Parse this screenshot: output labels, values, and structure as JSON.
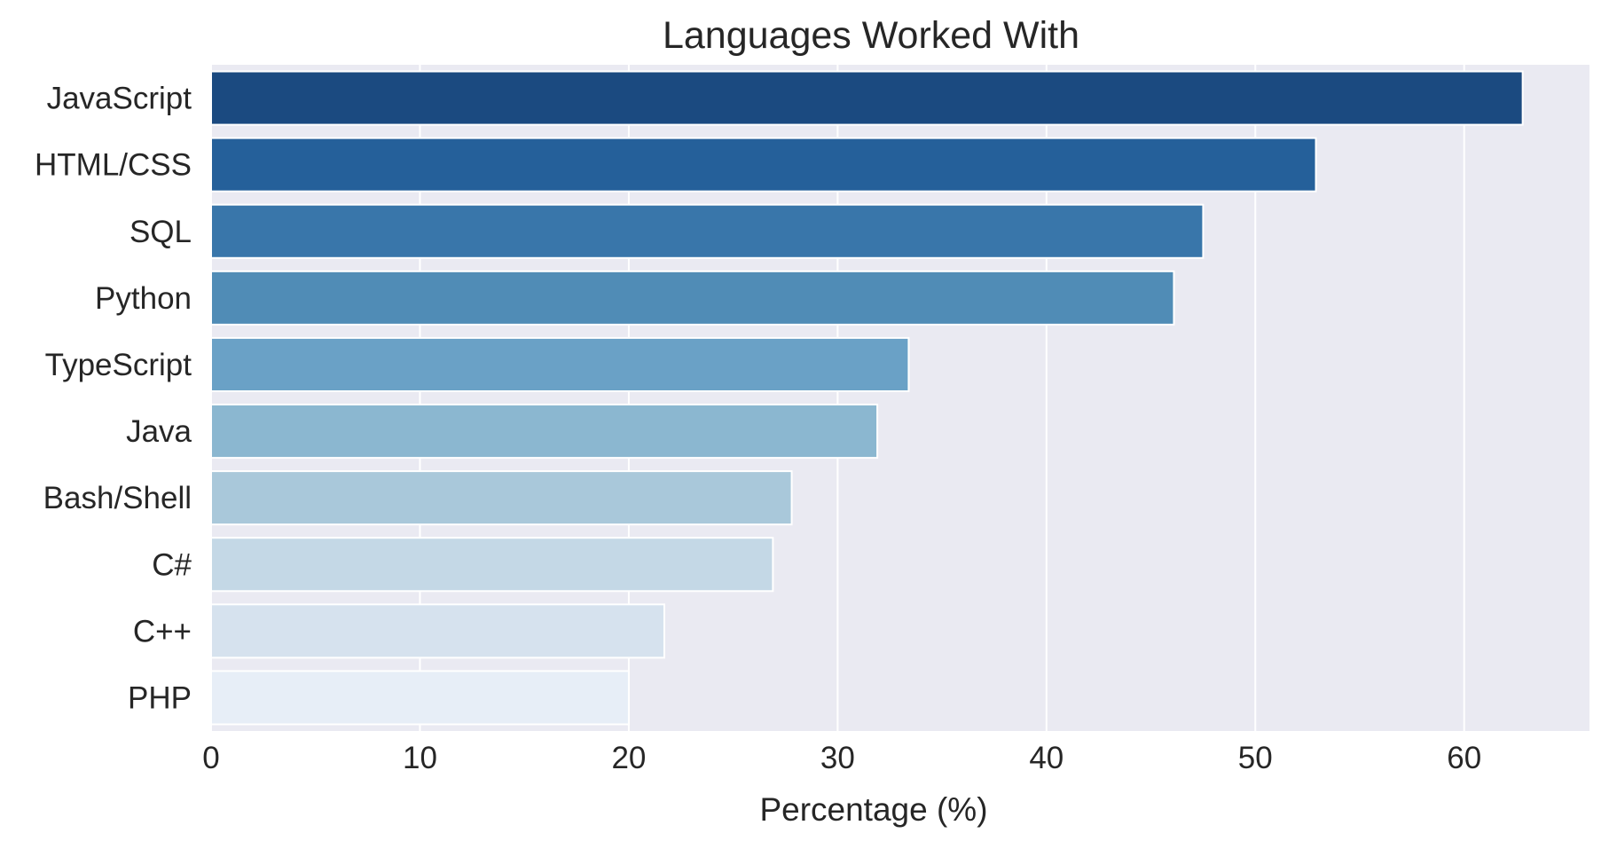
{
  "chart_data": {
    "type": "bar",
    "orientation": "horizontal",
    "title": "Languages Worked With",
    "xlabel": "Percentage (%)",
    "ylabel": "",
    "xlim": [
      0,
      66
    ],
    "x_ticks": [
      0,
      10,
      20,
      30,
      40,
      50,
      60
    ],
    "grid": true,
    "legend": "none",
    "background_color": "#eaeaf2",
    "grid_color": "#ffffff",
    "categories": [
      "JavaScript",
      "HTML/CSS",
      "SQL",
      "Python",
      "TypeScript",
      "Java",
      "Bash/Shell",
      "C#",
      "C++",
      "PHP"
    ],
    "values": [
      62.8,
      52.9,
      47.5,
      46.1,
      33.4,
      31.9,
      27.8,
      26.9,
      21.7,
      20.0
    ],
    "colors": [
      "#1b4a80",
      "#25609a",
      "#3976aa",
      "#508cb6",
      "#6aa1c6",
      "#8bb7d0",
      "#a9c8da",
      "#c4d8e6",
      "#d6e2ee",
      "#e7eef7"
    ]
  }
}
